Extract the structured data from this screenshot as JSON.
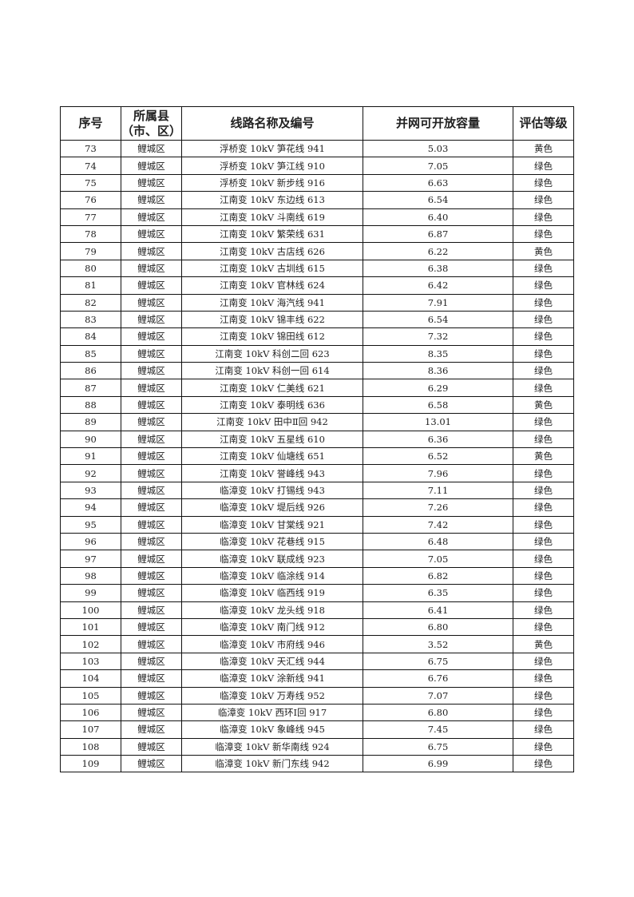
{
  "headers": [
    "序号",
    "所属县（市、区）",
    "线路名称及编号",
    "并网可开放容量",
    "评估等级"
  ],
  "header_county_line1": "所属县",
  "header_county_line2": "（市、区）",
  "rows": [
    {
      "no": "73",
      "county": "鲤城区",
      "line": "浮桥变 10kV 笋花线 941",
      "capacity": "5.03",
      "grade": "黄色"
    },
    {
      "no": "74",
      "county": "鲤城区",
      "line": "浮桥变 10kV 笋江线 910",
      "capacity": "7.05",
      "grade": "绿色"
    },
    {
      "no": "75",
      "county": "鲤城区",
      "line": "浮桥变 10kV 新步线 916",
      "capacity": "6.63",
      "grade": "绿色"
    },
    {
      "no": "76",
      "county": "鲤城区",
      "line": "江南变 10kV 东边线 613",
      "capacity": "6.54",
      "grade": "绿色"
    },
    {
      "no": "77",
      "county": "鲤城区",
      "line": "江南变 10kV 斗南线 619",
      "capacity": "6.40",
      "grade": "绿色"
    },
    {
      "no": "78",
      "county": "鲤城区",
      "line": "江南变 10kV 繁荣线 631",
      "capacity": "6.87",
      "grade": "绿色"
    },
    {
      "no": "79",
      "county": "鲤城区",
      "line": "江南变 10kV 古店线 626",
      "capacity": "6.22",
      "grade": "黄色"
    },
    {
      "no": "80",
      "county": "鲤城区",
      "line": "江南变 10kV 古圳线 615",
      "capacity": "6.38",
      "grade": "绿色"
    },
    {
      "no": "81",
      "county": "鲤城区",
      "line": "江南变 10kV 官林线 624",
      "capacity": "6.42",
      "grade": "绿色"
    },
    {
      "no": "82",
      "county": "鲤城区",
      "line": "江南变 10kV 海汽线 941",
      "capacity": "7.91",
      "grade": "绿色"
    },
    {
      "no": "83",
      "county": "鲤城区",
      "line": "江南变 10kV 锦丰线 622",
      "capacity": "6.54",
      "grade": "绿色"
    },
    {
      "no": "84",
      "county": "鲤城区",
      "line": "江南变 10kV 锦田线 612",
      "capacity": "7.32",
      "grade": "绿色"
    },
    {
      "no": "85",
      "county": "鲤城区",
      "line": "江南变 10kV 科创二回 623",
      "capacity": "8.35",
      "grade": "绿色"
    },
    {
      "no": "86",
      "county": "鲤城区",
      "line": "江南变 10kV 科创一回 614",
      "capacity": "8.36",
      "grade": "绿色"
    },
    {
      "no": "87",
      "county": "鲤城区",
      "line": "江南变 10kV 仁美线 621",
      "capacity": "6.29",
      "grade": "绿色"
    },
    {
      "no": "88",
      "county": "鲤城区",
      "line": "江南变 10kV 泰明线 636",
      "capacity": "6.58",
      "grade": "黄色"
    },
    {
      "no": "89",
      "county": "鲤城区",
      "line": "江南变 10kV 田中Ⅱ回 942",
      "capacity": "13.01",
      "grade": "绿色"
    },
    {
      "no": "90",
      "county": "鲤城区",
      "line": "江南变 10kV 五星线 610",
      "capacity": "6.36",
      "grade": "绿色"
    },
    {
      "no": "91",
      "county": "鲤城区",
      "line": "江南变 10kV 仙塘线 651",
      "capacity": "6.52",
      "grade": "黄色"
    },
    {
      "no": "92",
      "county": "鲤城区",
      "line": "江南变 10kV 誉峰线 943",
      "capacity": "7.96",
      "grade": "绿色"
    },
    {
      "no": "93",
      "county": "鲤城区",
      "line": "临漳变 10kV 打锡线 943",
      "capacity": "7.11",
      "grade": "绿色"
    },
    {
      "no": "94",
      "county": "鲤城区",
      "line": "临漳变 10kV 堤后线 926",
      "capacity": "7.26",
      "grade": "绿色"
    },
    {
      "no": "95",
      "county": "鲤城区",
      "line": "临漳变 10kV 甘棠线 921",
      "capacity": "7.42",
      "grade": "绿色"
    },
    {
      "no": "96",
      "county": "鲤城区",
      "line": "临漳变 10kV 花巷线 915",
      "capacity": "6.48",
      "grade": "绿色"
    },
    {
      "no": "97",
      "county": "鲤城区",
      "line": "临漳变 10kV 联成线 923",
      "capacity": "7.05",
      "grade": "绿色"
    },
    {
      "no": "98",
      "county": "鲤城区",
      "line": "临漳变 10kV 临涂线 914",
      "capacity": "6.82",
      "grade": "绿色"
    },
    {
      "no": "99",
      "county": "鲤城区",
      "line": "临漳变 10kV 临西线 919",
      "capacity": "6.35",
      "grade": "绿色"
    },
    {
      "no": "100",
      "county": "鲤城区",
      "line": "临漳变 10kV 龙头线 918",
      "capacity": "6.41",
      "grade": "绿色"
    },
    {
      "no": "101",
      "county": "鲤城区",
      "line": "临漳变 10kV 南门线 912",
      "capacity": "6.80",
      "grade": "绿色"
    },
    {
      "no": "102",
      "county": "鲤城区",
      "line": "临漳变 10kV 市府线 946",
      "capacity": "3.52",
      "grade": "黄色"
    },
    {
      "no": "103",
      "county": "鲤城区",
      "line": "临漳变 10kV 天汇线 944",
      "capacity": "6.75",
      "grade": "绿色"
    },
    {
      "no": "104",
      "county": "鲤城区",
      "line": "临漳变 10kV 涂新线 941",
      "capacity": "6.76",
      "grade": "绿色"
    },
    {
      "no": "105",
      "county": "鲤城区",
      "line": "临漳变 10kV 万寿线 952",
      "capacity": "7.07",
      "grade": "绿色"
    },
    {
      "no": "106",
      "county": "鲤城区",
      "line": "临漳变 10kV 西环Ⅰ回 917",
      "capacity": "6.80",
      "grade": "绿色"
    },
    {
      "no": "107",
      "county": "鲤城区",
      "line": "临漳变 10kV 象峰线 945",
      "capacity": "7.45",
      "grade": "绿色"
    },
    {
      "no": "108",
      "county": "鲤城区",
      "line": "临漳变 10kV 新华南线 924",
      "capacity": "6.75",
      "grade": "绿色"
    },
    {
      "no": "109",
      "county": "鲤城区",
      "line": "临漳变 10kV 新门东线 942",
      "capacity": "6.99",
      "grade": "绿色"
    }
  ]
}
